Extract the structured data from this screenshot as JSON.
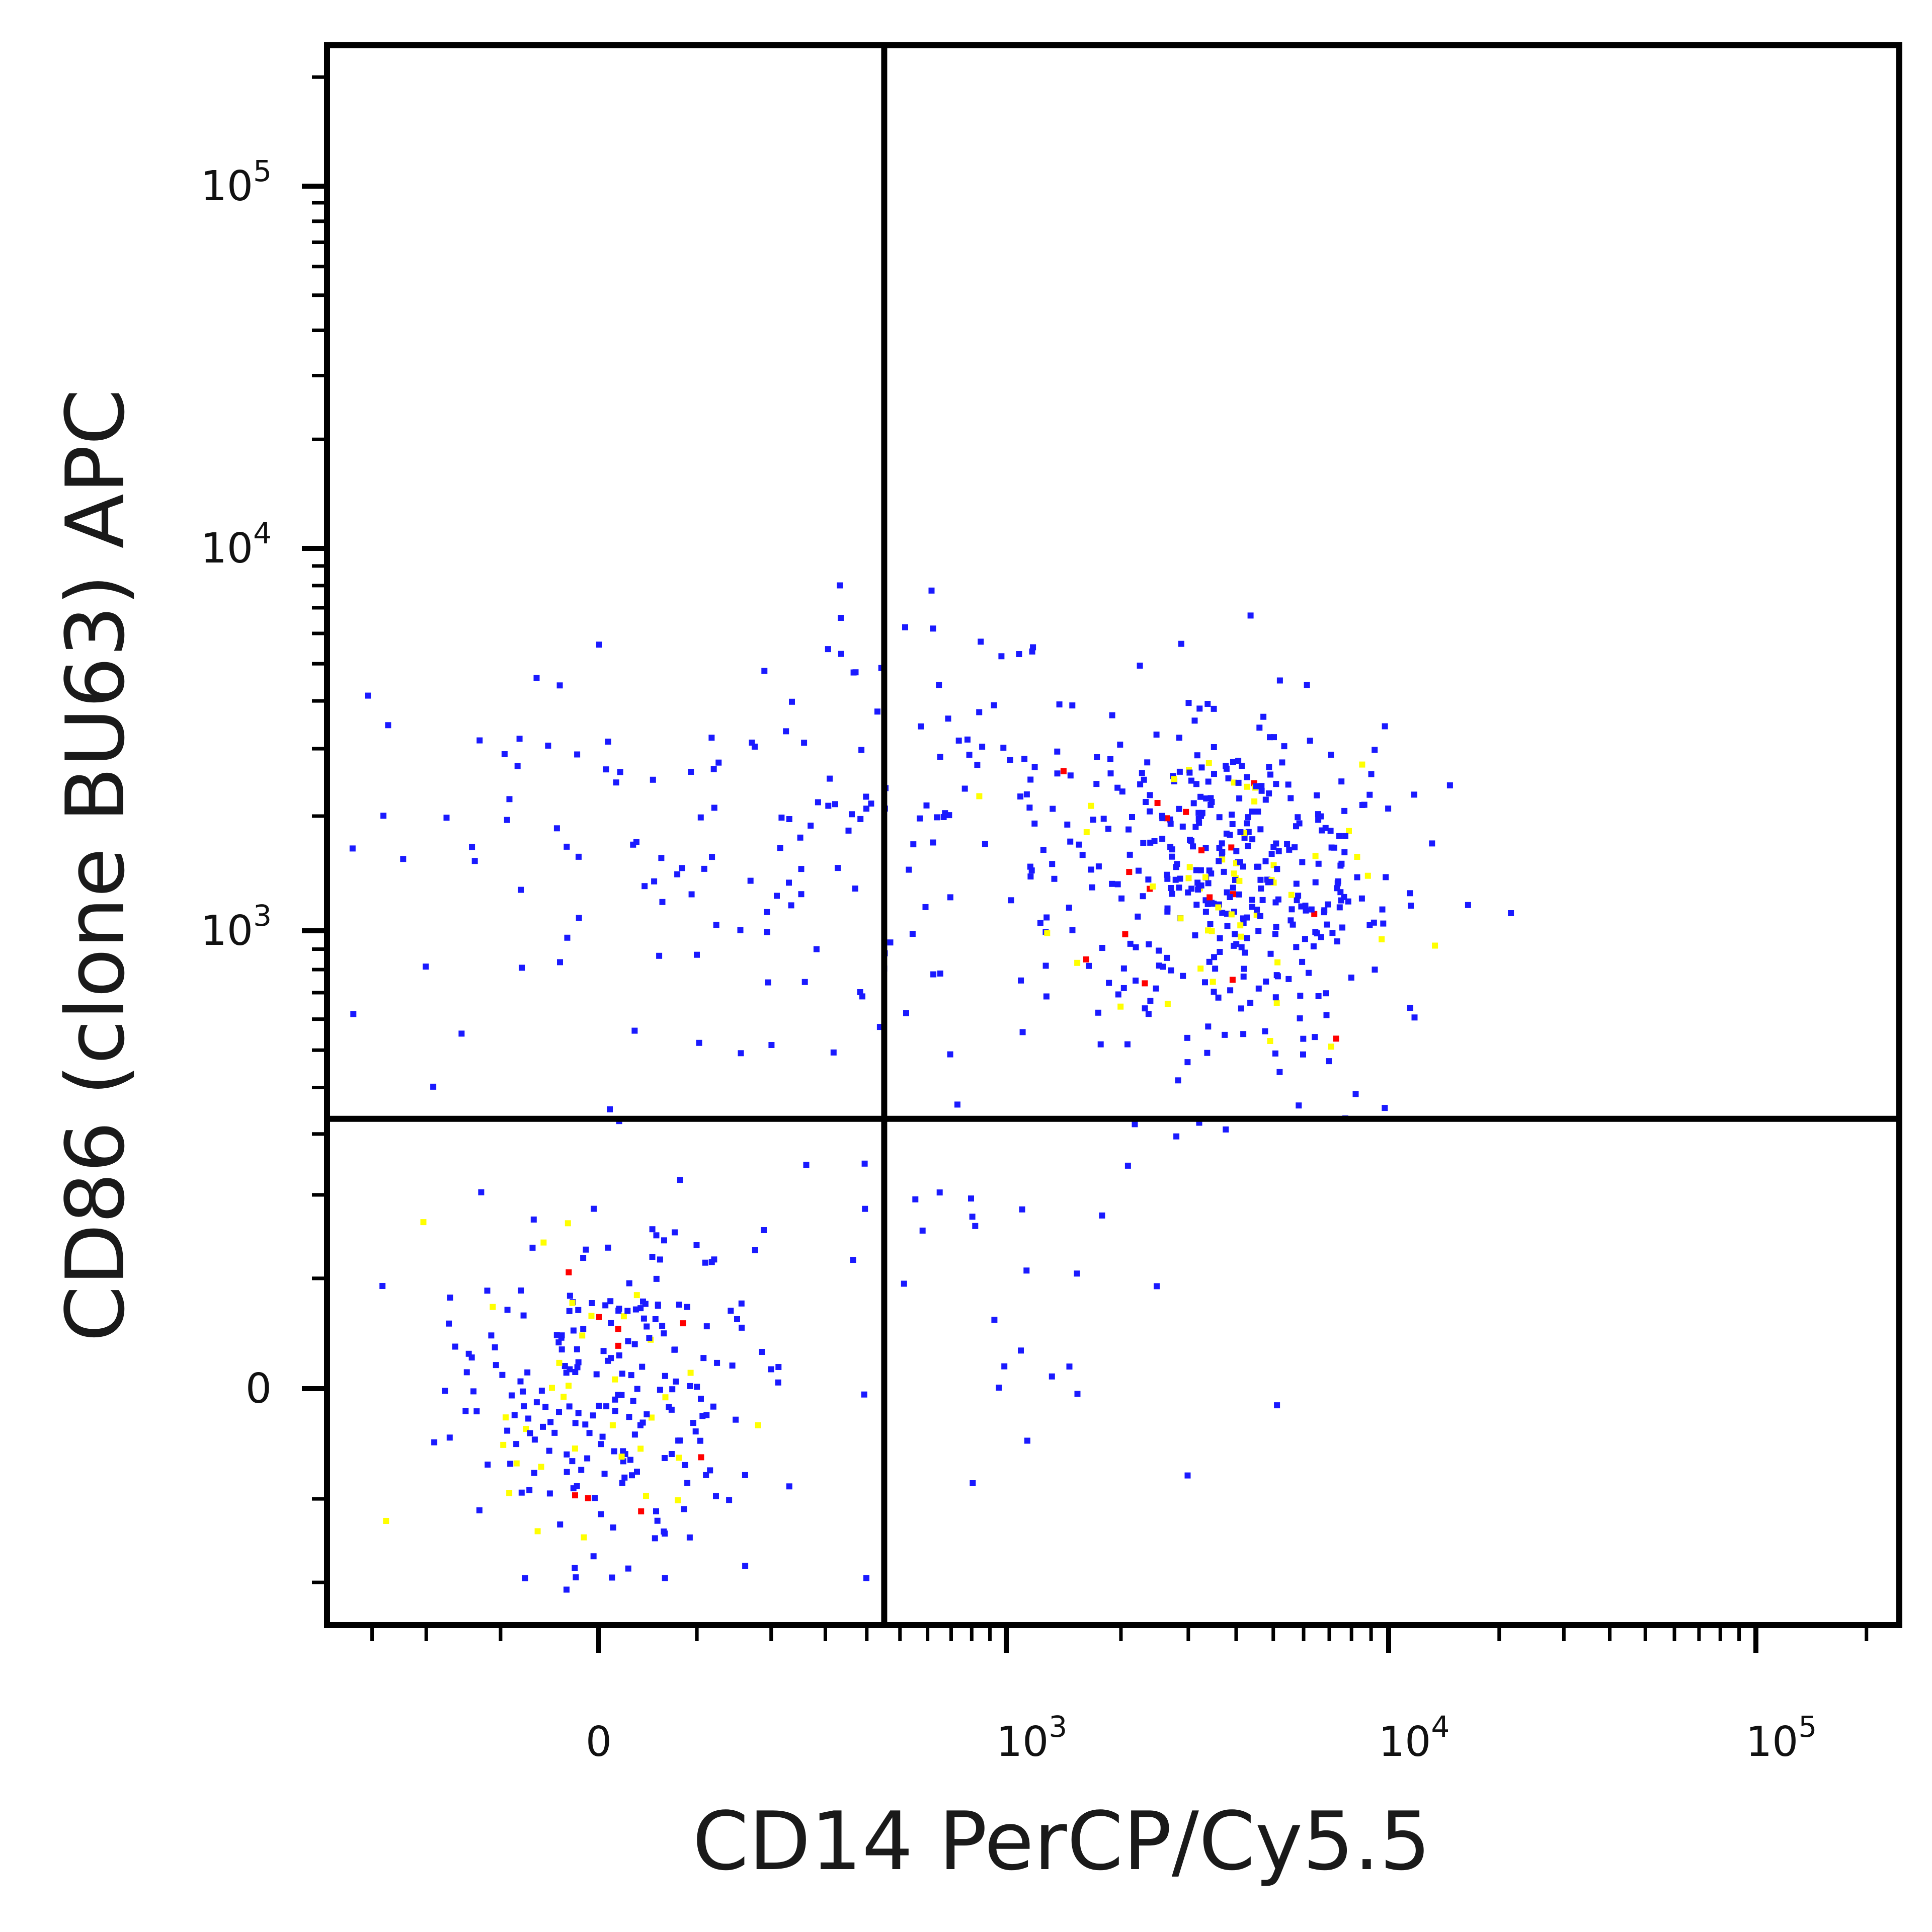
{
  "chart_data": {
    "type": "scatter",
    "subtype": "flow-cytometry-dot-plot",
    "title": "",
    "xlabel": "CD14 PerCP/Cy5.5",
    "ylabel": "CD86 (clone BU63) APC",
    "x_scale": "biexponential",
    "y_scale": "biexponential",
    "x_ticks": [
      {
        "value": 0,
        "label": "0",
        "sup": ""
      },
      {
        "value": 1000,
        "label": "10",
        "sup": "3"
      },
      {
        "value": 10000,
        "label": "10",
        "sup": "4"
      },
      {
        "value": 100000,
        "label": "10",
        "sup": "5"
      }
    ],
    "y_ticks": [
      {
        "value": 0,
        "label": "0",
        "sup": ""
      },
      {
        "value": 1000,
        "label": "10",
        "sup": "3"
      },
      {
        "value": 10000,
        "label": "10",
        "sup": "4"
      },
      {
        "value": 100000,
        "label": "10",
        "sup": "5"
      }
    ],
    "quadrant_gates": {
      "x": 450,
      "y": 330
    },
    "populations": [
      {
        "name_hint": "CD14- CD86- cluster",
        "center_x": 0,
        "center_y": 0,
        "spread_x": 80,
        "spread_y": 80,
        "count": 260
      },
      {
        "name_hint": "CD14+ CD86+ cluster",
        "center_x": 3800,
        "center_y": 1350,
        "spread_x": 0.23,
        "spread_y": 0.22,
        "count": 420
      },
      {
        "name_hint": "CD14- CD86+ scatter",
        "center_x": 150,
        "center_y": 1500,
        "spread_x": 220,
        "spread_y": 0.3,
        "count": 110
      },
      {
        "name_hint": "transition scatter",
        "center_x": 1000,
        "center_y": 2200,
        "spread_x": 0.3,
        "spread_y": 0.25,
        "count": 90
      },
      {
        "name_hint": "CD14+ CD86- scatter",
        "center_x": 1200,
        "center_y": 60,
        "spread_x": 0.35,
        "spread_y": 90,
        "count": 30
      }
    ],
    "density_colors": [
      "#1a1aff",
      "#ffff00",
      "#ff0000"
    ],
    "grid": false,
    "legend": "none"
  }
}
